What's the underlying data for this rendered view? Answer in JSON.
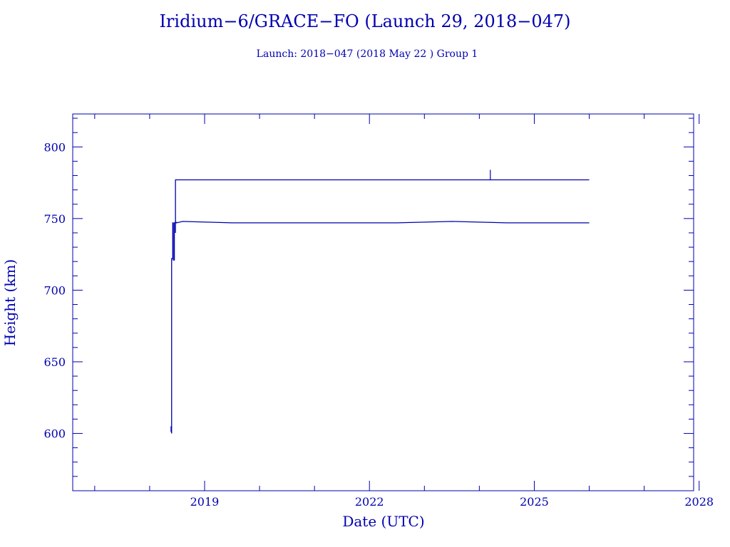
{
  "chart_data": {
    "type": "line",
    "title": "Iridium−6/GRACE−FO (Launch 29, 2018−047)",
    "subtitle": "Launch: 2018−047  (2018 May 22 )  Group 1",
    "xlabel": "Date (UTC)",
    "ylabel": "Height (km)",
    "xlim": [
      2016.6,
      2027.9
    ],
    "ylim": [
      560,
      823
    ],
    "x_ticks": [
      "2019",
      "2022",
      "2025",
      "2028"
    ],
    "x_tick_values": [
      2019,
      2022,
      2025,
      2028
    ],
    "y_ticks": [
      "600",
      "650",
      "700",
      "750",
      "800"
    ],
    "y_tick_values": [
      600,
      650,
      700,
      750,
      800
    ],
    "grid": false,
    "series": [
      {
        "color": "#0000b0",
        "x": [
          2018.39,
          2018.39,
          2018.4,
          2018.4,
          2018.4,
          2018.42,
          2018.42,
          2018.43,
          2018.43,
          2018.45,
          2018.45,
          2018.47,
          2018.47,
          2018.49,
          2018.6,
          2019.5,
          2020.5,
          2021.5,
          2022.5,
          2023.5,
          2024.5,
          2025.5,
          2026.0
        ],
        "y": [
          601,
          605,
          600,
          694,
          722,
          722,
          747,
          747,
          721,
          721,
          747,
          747,
          748,
          747,
          748,
          747,
          747,
          747,
          747,
          748,
          747,
          747,
          747
        ]
      },
      {
        "color": "#0000b0",
        "x": [
          2018.47,
          2018.47,
          2018.5,
          2019.5,
          2020.5,
          2021.5,
          2022.5,
          2023.5,
          2024.0,
          2024.5,
          2025.5,
          2026.0
        ],
        "y": [
          740,
          777,
          777,
          777,
          777,
          777,
          777,
          777,
          777,
          777,
          777,
          777
        ]
      }
    ],
    "spikes": [
      {
        "x": 2024.2,
        "y_from": 777,
        "y_to": 784
      }
    ]
  }
}
